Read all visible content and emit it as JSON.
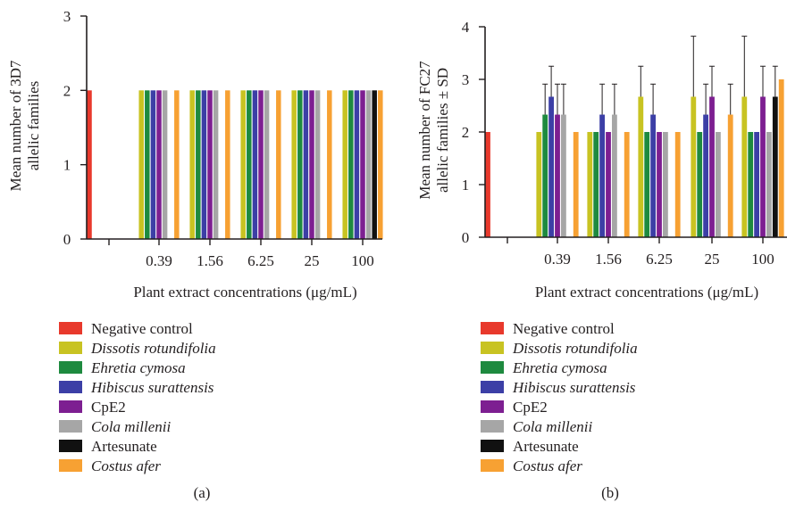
{
  "colors": {
    "Negative control": "#e8392c",
    "Dissotis rotundifolia": "#c8c322",
    "Ehretia cymosa": "#1e8a3f",
    "Hibiscus surattensis": "#3c3fa6",
    "CpE2": "#7d1f91",
    "Cola millenii": "#a6a6a6",
    "Artesunate": "#111111",
    "Costus afer": "#f7a133"
  },
  "chart_data": [
    {
      "id": "a",
      "type": "bar",
      "panel_label": "(a)",
      "xlabel": "Plant extract concentrations (μg/mL)",
      "ylabel_lines": [
        "Mean number of 3D7",
        "allelic families"
      ],
      "ylim": [
        0,
        3
      ],
      "yticks": [
        "0",
        "1",
        "2",
        "3"
      ],
      "categories": [
        "",
        "0.39",
        "1.56",
        "6.25",
        "25",
        "100"
      ],
      "series": [
        {
          "name": "Negative control",
          "values": [
            2,
            null,
            null,
            null,
            null,
            null
          ]
        },
        {
          "name": "Dissotis rotundifolia",
          "values": [
            null,
            2,
            2,
            2,
            2,
            2
          ]
        },
        {
          "name": "Ehretia cymosa",
          "values": [
            null,
            2,
            2,
            2,
            2,
            2
          ]
        },
        {
          "name": "Hibiscus surattensis",
          "values": [
            null,
            2,
            2,
            2,
            2,
            2
          ]
        },
        {
          "name": "CpE2",
          "values": [
            null,
            2,
            2,
            2,
            2,
            2
          ]
        },
        {
          "name": "Cola millenii",
          "values": [
            null,
            2,
            2,
            2,
            2,
            2
          ]
        },
        {
          "name": "Artesunate",
          "values": [
            null,
            null,
            null,
            null,
            null,
            2
          ]
        },
        {
          "name": "Costus afer",
          "values": [
            null,
            2,
            2,
            2,
            2,
            2
          ]
        }
      ],
      "legend_position": "below"
    },
    {
      "id": "b",
      "type": "bar",
      "panel_label": "(b)",
      "xlabel": "Plant extract concentrations (μg/mL)",
      "ylabel_lines": [
        "Mean number of FC27",
        "allelic families ± SD"
      ],
      "ylim": [
        0,
        4
      ],
      "yticks": [
        "0",
        "1",
        "2",
        "3",
        "4"
      ],
      "categories": [
        "",
        "0.39",
        "1.56",
        "6.25",
        "25",
        "100"
      ],
      "series": [
        {
          "name": "Negative control",
          "values": [
            2,
            null,
            null,
            null,
            null,
            null
          ],
          "sd": [
            0,
            null,
            null,
            null,
            null,
            null
          ]
        },
        {
          "name": "Dissotis rotundifolia",
          "values": [
            null,
            2,
            2,
            2.67,
            2.67,
            2.67
          ],
          "sd": [
            null,
            0,
            0,
            0.58,
            1.15,
            1.15
          ]
        },
        {
          "name": "Ehretia cymosa",
          "values": [
            null,
            2.33,
            2,
            2,
            2,
            2
          ],
          "sd": [
            null,
            0.58,
            0,
            0,
            0,
            0
          ]
        },
        {
          "name": "Hibiscus surattensis",
          "values": [
            null,
            2.67,
            2.33,
            2.33,
            2.33,
            2
          ],
          "sd": [
            null,
            0.58,
            0.58,
            0.58,
            0.58,
            0
          ]
        },
        {
          "name": "CpE2",
          "values": [
            null,
            2.33,
            2,
            2,
            2.67,
            2.67
          ],
          "sd": [
            null,
            0.58,
            0,
            0,
            0.58,
            0.58
          ]
        },
        {
          "name": "Cola millenii",
          "values": [
            null,
            2.33,
            2.33,
            2,
            2,
            2
          ],
          "sd": [
            null,
            0.58,
            0.58,
            0,
            0,
            0
          ]
        },
        {
          "name": "Artesunate",
          "values": [
            null,
            null,
            null,
            null,
            null,
            2.67
          ],
          "sd": [
            null,
            null,
            null,
            null,
            null,
            0.58
          ]
        },
        {
          "name": "Costus afer",
          "values": [
            null,
            2,
            2,
            2,
            2.33,
            3
          ],
          "sd": [
            null,
            0,
            0,
            0,
            0.58,
            0
          ]
        }
      ],
      "legend_position": "below"
    }
  ],
  "legend": [
    {
      "name": "Negative control",
      "italic": false
    },
    {
      "name": "Dissotis rotundifolia",
      "italic": true
    },
    {
      "name": "Ehretia cymosa",
      "italic": true
    },
    {
      "name": "Hibiscus surattensis",
      "italic": true
    },
    {
      "name": "CpE2",
      "italic": false
    },
    {
      "name": "Cola millenii",
      "italic": true
    },
    {
      "name": "Artesunate",
      "italic": false
    },
    {
      "name": "Costus afer",
      "italic": true
    }
  ]
}
